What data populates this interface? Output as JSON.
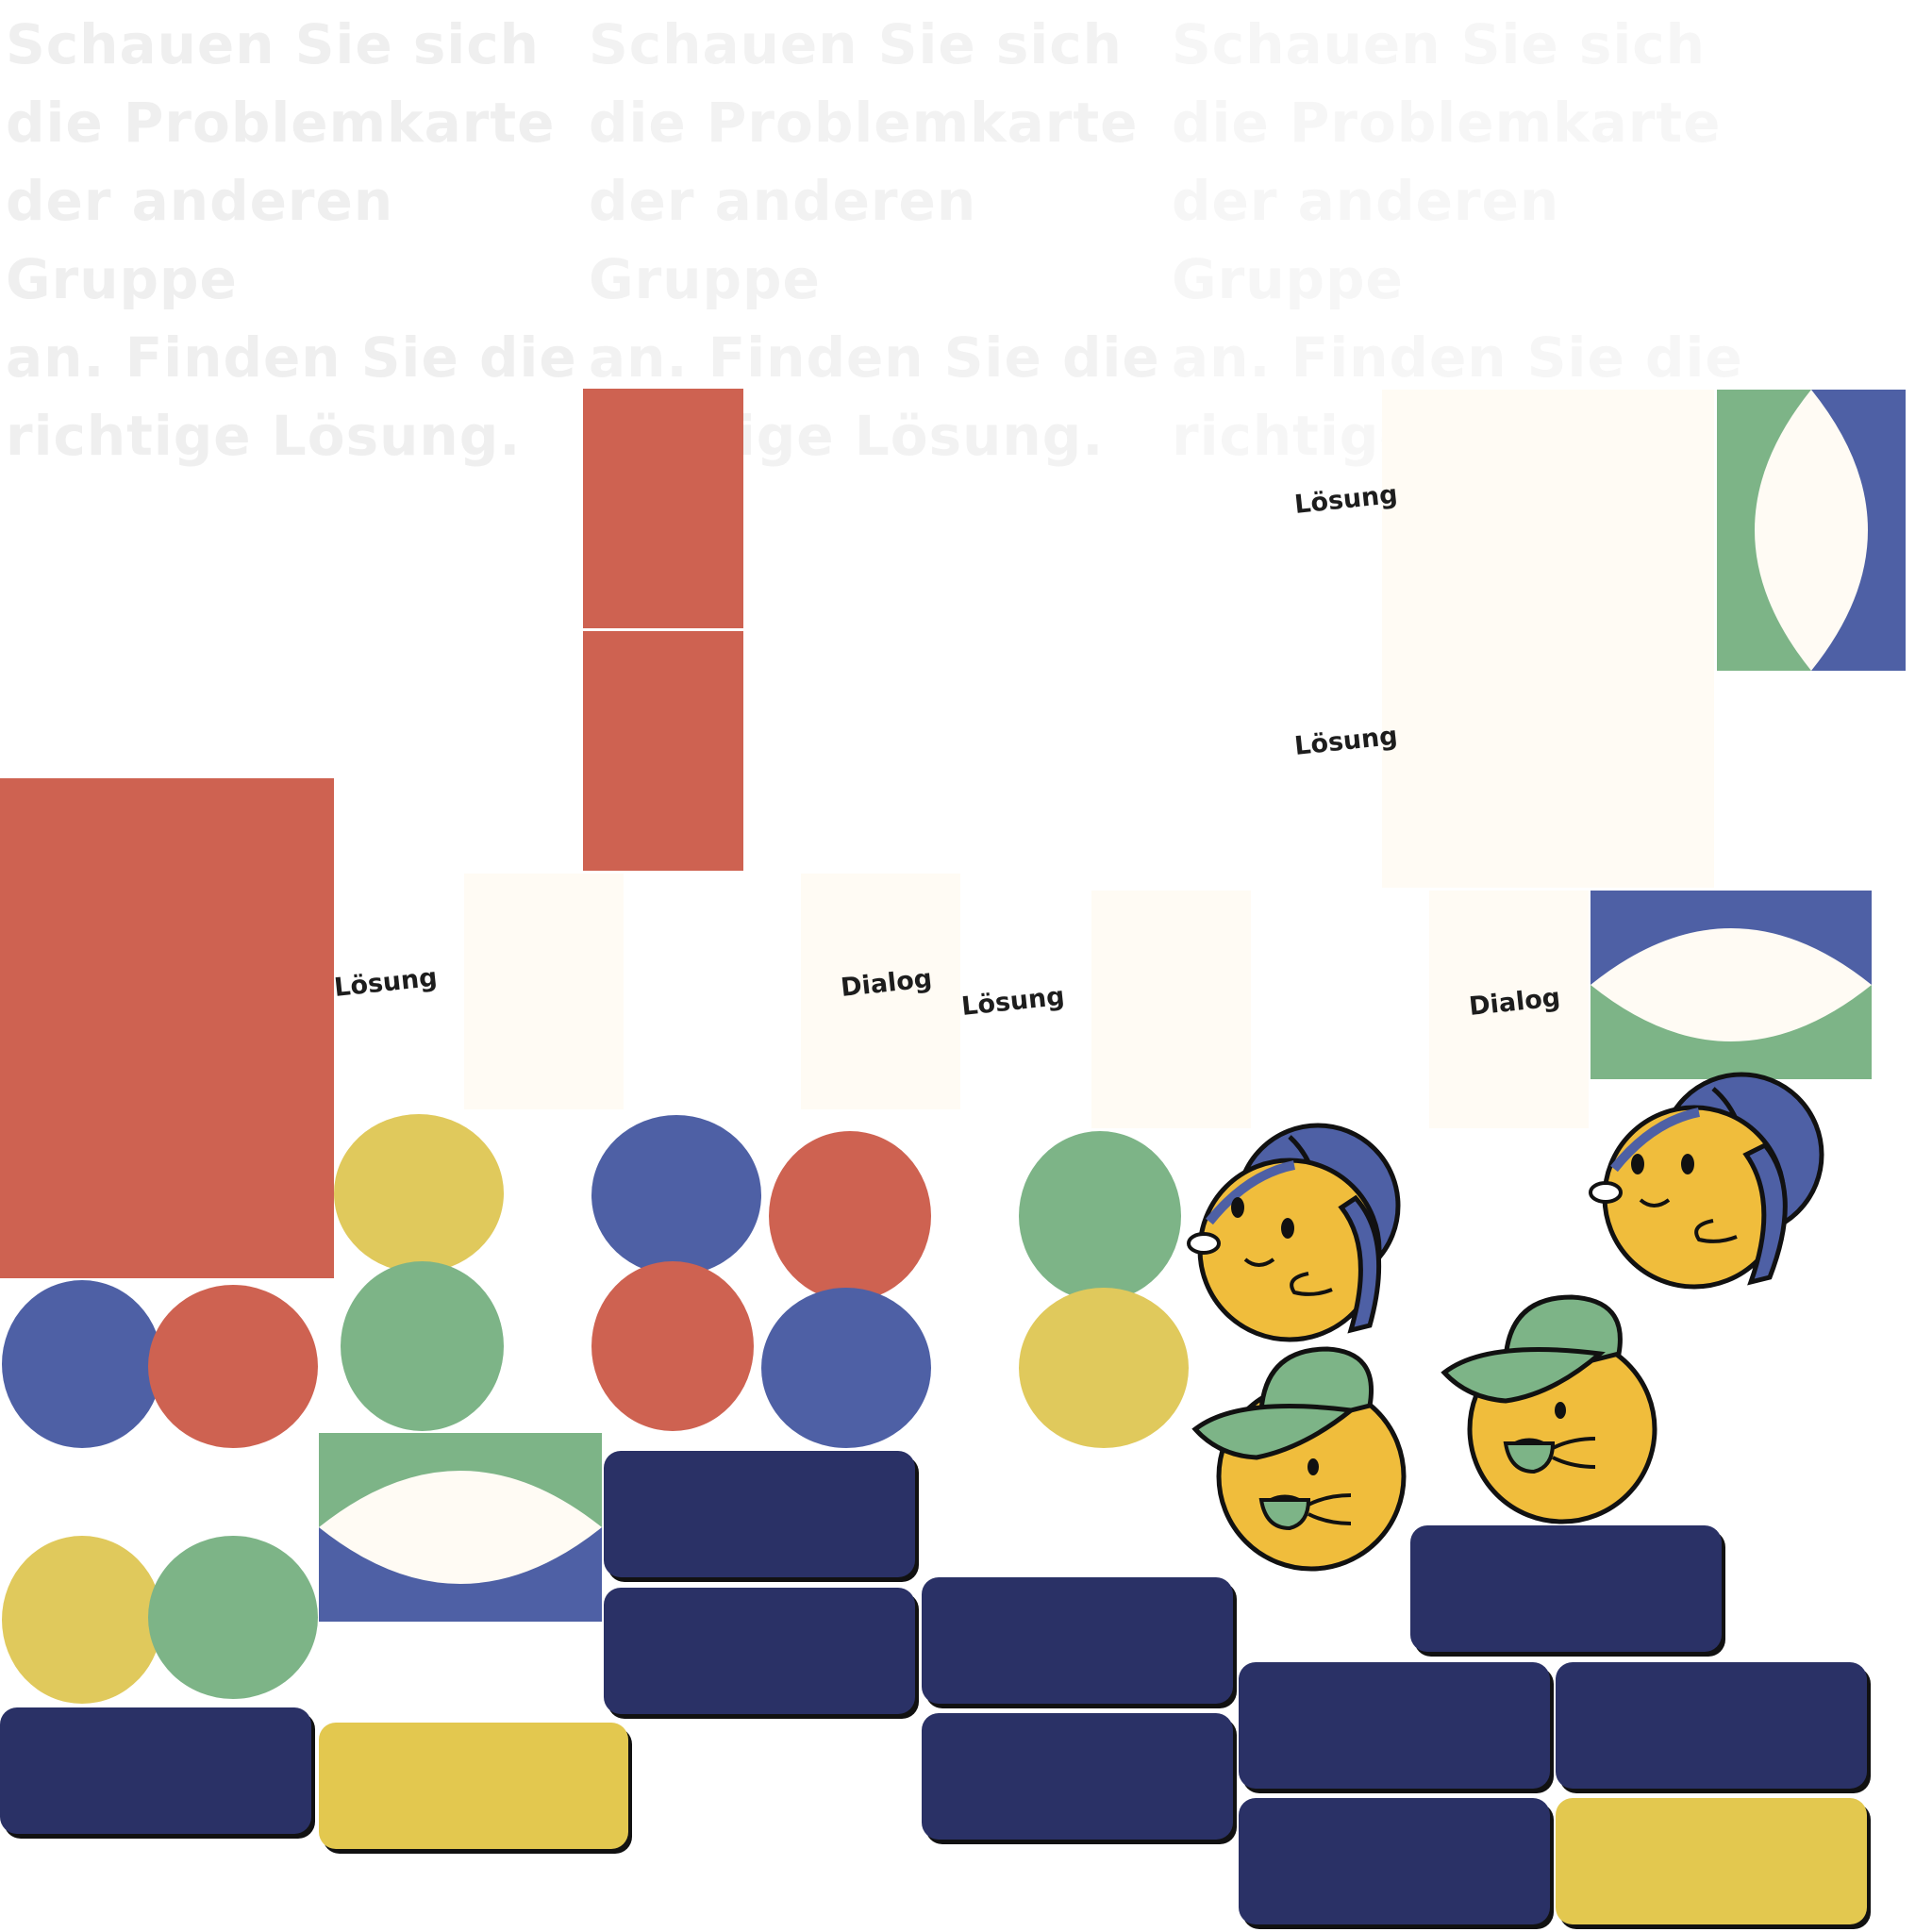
{
  "prompt_text": "Schauen Sie sich\ndie Problemkarte\nder anderen Gruppe\nan. Finden Sie die\nrichtige Lösung.",
  "prompt_colors": [
    "#f2f2f2",
    "#f4f4f4",
    "#f7f7f7"
  ],
  "labels": {
    "solution": "Lösung",
    "dialog": "Dialog"
  },
  "colors": {
    "red": "#ce6251",
    "blue": "#4e60a5",
    "green": "#7db487",
    "yellow": "#e0c95c",
    "cream": "#fffbf4",
    "navy": "#2a3166",
    "gold": "#e3c84f",
    "character_skin": "#f0bd3c",
    "outline": "#111111"
  },
  "icons": [
    "character-blue-cap-icon",
    "character-green-cap-icon",
    "lens-tile-icon"
  ]
}
